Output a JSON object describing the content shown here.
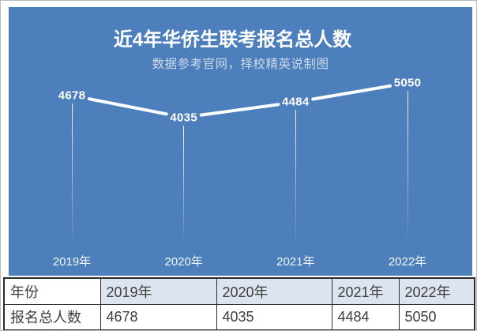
{
  "colors": {
    "chart_background": "#4d7fbc",
    "line": "#ffffff",
    "title_text": "#ffffff",
    "subtitle_text": "#cdd9e8",
    "table_header_bg": "#dce4ef",
    "table_border": "#2b2b2b",
    "table_text": "#3d3d3d"
  },
  "chart_data": {
    "type": "line",
    "title": "近4年华侨生联考报名总人数",
    "subtitle": "数据参考官网，择校精英说制图",
    "series_name": "报名总人数",
    "categories": [
      "2019年",
      "2020年",
      "2021年",
      "2022年"
    ],
    "values": [
      4678,
      4035,
      4484,
      5050
    ],
    "data_labels_visible": true,
    "legend": "none",
    "grid": "off",
    "axes_visible": false
  },
  "table": {
    "header_row": [
      "年份",
      "2019年",
      "2020年",
      "2021年",
      "2022年"
    ],
    "data_row": [
      "报名总人数",
      "4678",
      "4035",
      "4484",
      "5050"
    ]
  }
}
